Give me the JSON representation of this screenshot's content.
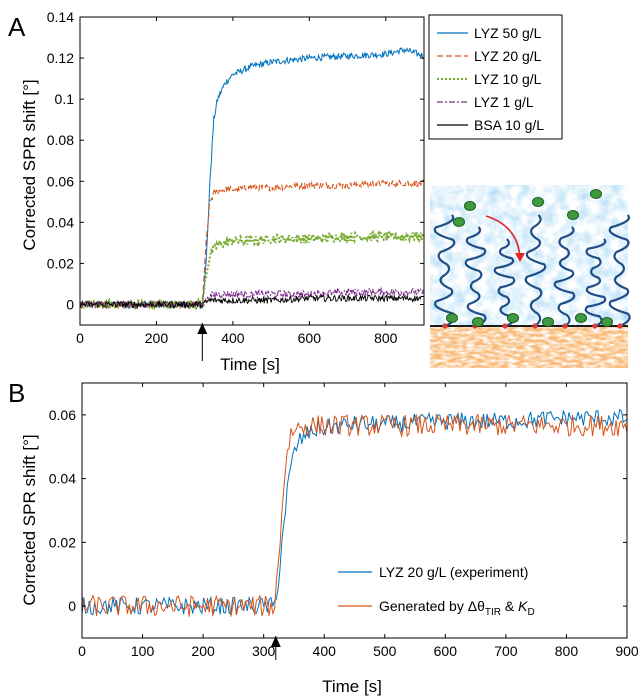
{
  "chart_data": [
    {
      "panel_label": "A",
      "type": "line",
      "xlabel": "Time [s]",
      "ylabel": "Corrected SPR shift [°]",
      "xlim": [
        0,
        900
      ],
      "ylim": [
        -0.01,
        0.14
      ],
      "xticks": [
        0,
        200,
        400,
        600,
        800
      ],
      "yticks": [
        0,
        0.02,
        0.04,
        0.06,
        0.08,
        0.1,
        0.12,
        0.14
      ],
      "grid": false,
      "legend_position": "outside-right-top",
      "injection_time": 320,
      "series": [
        {
          "name": "LYZ 50 g/L",
          "color": "#0072BD",
          "dash": "solid",
          "x": [
            0,
            320,
            330,
            340,
            350,
            360,
            380,
            400,
            450,
            500,
            600,
            700,
            800,
            850,
            900
          ],
          "y": [
            0.0,
            0.0,
            0.02,
            0.06,
            0.09,
            0.1,
            0.108,
            0.112,
            0.116,
            0.118,
            0.12,
            0.121,
            0.122,
            0.124,
            0.121
          ]
        },
        {
          "name": "LYZ 20 g/L",
          "color": "#D95319",
          "dash": "dashed",
          "x": [
            0,
            320,
            330,
            340,
            350,
            360,
            380,
            400,
            450,
            500,
            600,
            700,
            800,
            900
          ],
          "y": [
            0.0,
            0.0,
            0.03,
            0.05,
            0.054,
            0.055,
            0.056,
            0.056,
            0.057,
            0.057,
            0.058,
            0.058,
            0.059,
            0.059
          ]
        },
        {
          "name": "LYZ 10 g/L",
          "color": "#77AC30",
          "dash": "dotted",
          "x": [
            0,
            320,
            330,
            340,
            350,
            360,
            380,
            400,
            450,
            500,
            600,
            700,
            800,
            900
          ],
          "y": [
            0.0,
            0.0,
            0.015,
            0.024,
            0.027,
            0.029,
            0.03,
            0.031,
            0.031,
            0.032,
            0.032,
            0.033,
            0.033,
            0.033
          ]
        },
        {
          "name": "LYZ 1 g/L",
          "color": "#7E2F8E",
          "dash": "dashdot",
          "x": [
            0,
            320,
            340,
            360,
            400,
            500,
            600,
            700,
            800,
            900
          ],
          "y": [
            0.0,
            0.0,
            0.004,
            0.005,
            0.005,
            0.005,
            0.005,
            0.006,
            0.006,
            0.006
          ]
        },
        {
          "name": "BSA 10 g/L",
          "color": "#000000",
          "dash": "solid",
          "x": [
            0,
            320,
            340,
            360,
            400,
            500,
            600,
            700,
            800,
            900
          ],
          "y": [
            0.0,
            0.0,
            0.002,
            0.002,
            0.002,
            0.002,
            0.003,
            0.003,
            0.003,
            0.003
          ]
        }
      ]
    },
    {
      "panel_label": "B",
      "type": "line",
      "xlabel": "Time [s]",
      "ylabel": "Corrected SPR shift [°]",
      "xlim": [
        0,
        900
      ],
      "ylim": [
        -0.01,
        0.07
      ],
      "xticks": [
        0,
        100,
        200,
        300,
        400,
        500,
        600,
        700,
        800,
        900
      ],
      "yticks": [
        0,
        0.02,
        0.04,
        0.06
      ],
      "grid": false,
      "legend_position": "bottom-right",
      "injection_time": 320,
      "series": [
        {
          "name": "LYZ 20 g/L (experiment)",
          "color": "#0072BD",
          "dash": "solid",
          "x": [
            0,
            320,
            330,
            340,
            350,
            360,
            380,
            400,
            450,
            500,
            600,
            700,
            800,
            900
          ],
          "y": [
            0.0,
            0.0,
            0.02,
            0.038,
            0.048,
            0.052,
            0.055,
            0.056,
            0.057,
            0.057,
            0.058,
            0.058,
            0.059,
            0.059
          ]
        },
        {
          "name": "Generated by Δθ_TIR & K_D",
          "color": "#D95319",
          "dash": "solid",
          "x": [
            0,
            318,
            325,
            330,
            335,
            340,
            345,
            350,
            360,
            370,
            380,
            400,
            450,
            500,
            600,
            700,
            800,
            900
          ],
          "y": [
            0.0,
            0.0,
            0.015,
            0.03,
            0.042,
            0.05,
            0.054,
            0.0555,
            0.0562,
            0.0565,
            0.0566,
            0.0567,
            0.0567,
            0.0567,
            0.0567,
            0.0567,
            0.0567,
            0.0567
          ]
        }
      ]
    }
  ]
}
